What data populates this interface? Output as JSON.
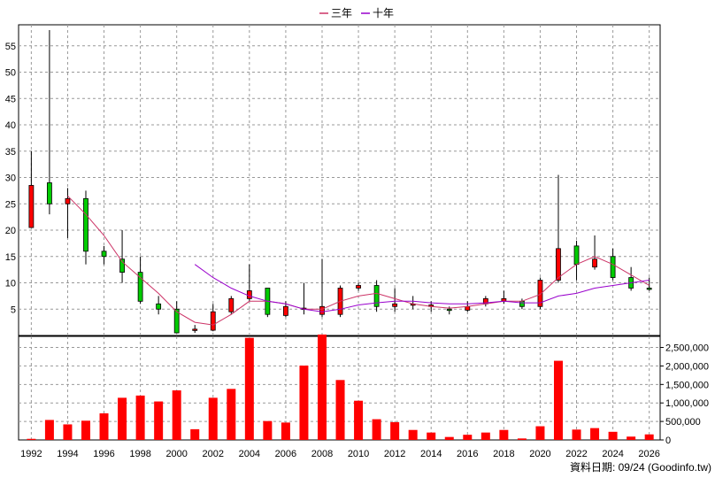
{
  "legend": {
    "ma3_label": "三年",
    "ma10_label": "十年"
  },
  "footer_note": "資料日期: 09/24 (Goodinfo.tw)",
  "colors": {
    "up": "#ff0000",
    "down": "#00cc00",
    "ma3": "#cc3366",
    "ma10": "#9900cc",
    "volume": "#ff0000",
    "grid": "#999999"
  },
  "chart_data": {
    "type": "candlestick_with_volume",
    "price_axis": {
      "range": [
        0,
        59
      ],
      "ticks": [
        5,
        10,
        15,
        20,
        25,
        30,
        35,
        40,
        45,
        50,
        55
      ]
    },
    "volume_axis": {
      "range": [
        0,
        2800000
      ],
      "ticks": [
        "0",
        "500,000",
        "1,000,000",
        "1,500,000",
        "2,000,000",
        "2,500,000"
      ],
      "tick_values": [
        0,
        500000,
        1000000,
        1500000,
        2000000,
        2500000
      ]
    },
    "x_ticks": [
      "1992",
      "1994",
      "1996",
      "1998",
      "2000",
      "2002",
      "2004",
      "2006",
      "2008",
      "2010",
      "2012",
      "2014",
      "2016",
      "2018",
      "2020",
      "2022",
      "2024",
      "2026"
    ],
    "grid": true,
    "candles": [
      {
        "year": 1992,
        "open": 20.5,
        "close": 28.5,
        "high": 35.0,
        "low": 20.5
      },
      {
        "year": 1993,
        "open": 29.0,
        "close": 25.0,
        "high": 58.0,
        "low": 23.0
      },
      {
        "year": 1994,
        "open": 25.0,
        "close": 26.0,
        "high": 28.0,
        "low": 18.5
      },
      {
        "year": 1995,
        "open": 26.0,
        "close": 16.0,
        "high": 27.5,
        "low": 13.5
      },
      {
        "year": 1996,
        "open": 16.0,
        "close": 15.0,
        "high": 17.0,
        "low": 13.5
      },
      {
        "year": 1997,
        "open": 14.5,
        "close": 12.0,
        "high": 20.0,
        "low": 10.0
      },
      {
        "year": 1998,
        "open": 12.0,
        "close": 6.5,
        "high": 15.0,
        "low": 6.0
      },
      {
        "year": 1999,
        "open": 6.0,
        "close": 5.0,
        "high": 7.5,
        "low": 4.0
      },
      {
        "year": 2000,
        "open": 5.0,
        "close": 0.5,
        "high": 6.5,
        "low": 0.5
      },
      {
        "year": 2001,
        "open": 1.0,
        "close": 1.2,
        "high": 2.0,
        "low": 0.5
      },
      {
        "year": 2002,
        "open": 1.0,
        "close": 4.5,
        "high": 6.0,
        "low": 0.8
      },
      {
        "year": 2003,
        "open": 4.5,
        "close": 7.0,
        "high": 7.5,
        "low": 4.0
      },
      {
        "year": 2004,
        "open": 7.0,
        "close": 8.5,
        "high": 13.5,
        "low": 6.5
      },
      {
        "year": 2005,
        "open": 9.0,
        "close": 4.0,
        "high": 9.0,
        "low": 3.5
      },
      {
        "year": 2006,
        "open": 3.8,
        "close": 5.5,
        "high": 6.5,
        "low": 3.5
      },
      {
        "year": 2007,
        "open": 5.0,
        "close": 5.2,
        "high": 10.0,
        "low": 4.0
      },
      {
        "year": 2008,
        "open": 4.0,
        "close": 5.5,
        "high": 14.5,
        "low": 3.5
      },
      {
        "year": 2009,
        "open": 4.0,
        "close": 9.0,
        "high": 9.5,
        "low": 3.5
      },
      {
        "year": 2010,
        "open": 9.0,
        "close": 9.5,
        "high": 10.0,
        "low": 8.5
      },
      {
        "year": 2011,
        "open": 9.5,
        "close": 5.5,
        "high": 10.5,
        "low": 4.5
      },
      {
        "year": 2012,
        "open": 5.5,
        "close": 6.0,
        "high": 9.0,
        "low": 4.5
      },
      {
        "year": 2013,
        "open": 5.8,
        "close": 6.0,
        "high": 7.5,
        "low": 5.0
      },
      {
        "year": 2014,
        "open": 5.5,
        "close": 5.8,
        "high": 6.5,
        "low": 4.5
      },
      {
        "year": 2015,
        "open": 5.0,
        "close": 4.8,
        "high": 5.5,
        "low": 4.0
      },
      {
        "year": 2016,
        "open": 4.8,
        "close": 5.5,
        "high": 6.5,
        "low": 4.5
      },
      {
        "year": 2017,
        "open": 6.0,
        "close": 7.0,
        "high": 7.5,
        "low": 5.5
      },
      {
        "year": 2018,
        "open": 6.5,
        "close": 7.0,
        "high": 8.5,
        "low": 6.0
      },
      {
        "year": 2019,
        "open": 6.5,
        "close": 5.5,
        "high": 7.0,
        "low": 5.0
      },
      {
        "year": 2020,
        "open": 5.5,
        "close": 10.5,
        "high": 11.0,
        "low": 5.0
      },
      {
        "year": 2021,
        "open": 10.5,
        "close": 16.5,
        "high": 30.5,
        "low": 10.0
      },
      {
        "year": 2022,
        "open": 17.0,
        "close": 13.5,
        "high": 18.0,
        "low": 10.5
      },
      {
        "year": 2023,
        "open": 13.0,
        "close": 14.5,
        "high": 19.0,
        "low": 12.5
      },
      {
        "year": 2024,
        "open": 15.0,
        "close": 11.0,
        "high": 16.5,
        "low": 10.5
      },
      {
        "year": 2025,
        "open": 11.0,
        "close": 9.0,
        "high": 13.0,
        "low": 8.5
      },
      {
        "year": 2026,
        "open": 9.0,
        "close": 8.8,
        "high": 11.0,
        "low": 8.5
      }
    ],
    "ma3": [
      {
        "year": 1994,
        "value": 26.5
      },
      {
        "year": 1995,
        "value": 23.0
      },
      {
        "year": 1996,
        "value": 19.0
      },
      {
        "year": 1997,
        "value": 14.0
      },
      {
        "year": 1998,
        "value": 11.0
      },
      {
        "year": 1999,
        "value": 8.0
      },
      {
        "year": 2000,
        "value": 4.5
      },
      {
        "year": 2001,
        "value": 2.5
      },
      {
        "year": 2002,
        "value": 2.0
      },
      {
        "year": 2003,
        "value": 4.0
      },
      {
        "year": 2004,
        "value": 6.5
      },
      {
        "year": 2005,
        "value": 6.5
      },
      {
        "year": 2006,
        "value": 6.0
      },
      {
        "year": 2007,
        "value": 5.0
      },
      {
        "year": 2008,
        "value": 5.0
      },
      {
        "year": 2009,
        "value": 6.5
      },
      {
        "year": 2010,
        "value": 7.5
      },
      {
        "year": 2011,
        "value": 8.0
      },
      {
        "year": 2012,
        "value": 7.0
      },
      {
        "year": 2013,
        "value": 6.0
      },
      {
        "year": 2014,
        "value": 5.5
      },
      {
        "year": 2015,
        "value": 5.2
      },
      {
        "year": 2016,
        "value": 5.5
      },
      {
        "year": 2017,
        "value": 6.0
      },
      {
        "year": 2018,
        "value": 6.5
      },
      {
        "year": 2019,
        "value": 6.5
      },
      {
        "year": 2020,
        "value": 7.8
      },
      {
        "year": 2021,
        "value": 11.0
      },
      {
        "year": 2022,
        "value": 13.5
      },
      {
        "year": 2023,
        "value": 15.0
      },
      {
        "year": 2024,
        "value": 13.5
      },
      {
        "year": 2025,
        "value": 11.5
      },
      {
        "year": 2026,
        "value": 9.5
      }
    ],
    "ma10": [
      {
        "year": 2001,
        "value": 13.5
      },
      {
        "year": 2002,
        "value": 11.0
      },
      {
        "year": 2003,
        "value": 9.0
      },
      {
        "year": 2004,
        "value": 7.5
      },
      {
        "year": 2005,
        "value": 6.5
      },
      {
        "year": 2006,
        "value": 6.0
      },
      {
        "year": 2007,
        "value": 5.0
      },
      {
        "year": 2008,
        "value": 4.5
      },
      {
        "year": 2009,
        "value": 5.0
      },
      {
        "year": 2010,
        "value": 5.8
      },
      {
        "year": 2011,
        "value": 6.2
      },
      {
        "year": 2012,
        "value": 6.5
      },
      {
        "year": 2013,
        "value": 6.5
      },
      {
        "year": 2014,
        "value": 6.2
      },
      {
        "year": 2015,
        "value": 6.0
      },
      {
        "year": 2016,
        "value": 6.0
      },
      {
        "year": 2017,
        "value": 6.2
      },
      {
        "year": 2018,
        "value": 6.5
      },
      {
        "year": 2019,
        "value": 6.2
      },
      {
        "year": 2020,
        "value": 6.2
      },
      {
        "year": 2021,
        "value": 7.5
      },
      {
        "year": 2022,
        "value": 8.0
      },
      {
        "year": 2023,
        "value": 9.0
      },
      {
        "year": 2024,
        "value": 9.5
      },
      {
        "year": 2025,
        "value": 10.0
      },
      {
        "year": 2026,
        "value": 10.5
      }
    ],
    "volume": [
      {
        "year": 1992,
        "value": 30000
      },
      {
        "year": 1993,
        "value": 540000
      },
      {
        "year": 1994,
        "value": 420000
      },
      {
        "year": 1995,
        "value": 520000
      },
      {
        "year": 1996,
        "value": 720000
      },
      {
        "year": 1997,
        "value": 1140000
      },
      {
        "year": 1998,
        "value": 1200000
      },
      {
        "year": 1999,
        "value": 1040000
      },
      {
        "year": 2000,
        "value": 1340000
      },
      {
        "year": 2001,
        "value": 290000
      },
      {
        "year": 2002,
        "value": 1140000
      },
      {
        "year": 2003,
        "value": 1380000
      },
      {
        "year": 2004,
        "value": 2760000
      },
      {
        "year": 2005,
        "value": 510000
      },
      {
        "year": 2006,
        "value": 470000
      },
      {
        "year": 2007,
        "value": 2010000
      },
      {
        "year": 2008,
        "value": 2850000
      },
      {
        "year": 2009,
        "value": 1620000
      },
      {
        "year": 2010,
        "value": 1060000
      },
      {
        "year": 2011,
        "value": 560000
      },
      {
        "year": 2012,
        "value": 480000
      },
      {
        "year": 2013,
        "value": 270000
      },
      {
        "year": 2014,
        "value": 200000
      },
      {
        "year": 2015,
        "value": 80000
      },
      {
        "year": 2016,
        "value": 140000
      },
      {
        "year": 2017,
        "value": 200000
      },
      {
        "year": 2018,
        "value": 270000
      },
      {
        "year": 2019,
        "value": 40000
      },
      {
        "year": 2020,
        "value": 370000
      },
      {
        "year": 2021,
        "value": 2140000
      },
      {
        "year": 2022,
        "value": 280000
      },
      {
        "year": 2023,
        "value": 320000
      },
      {
        "year": 2024,
        "value": 220000
      },
      {
        "year": 2025,
        "value": 90000
      },
      {
        "year": 2026,
        "value": 150000
      }
    ]
  }
}
